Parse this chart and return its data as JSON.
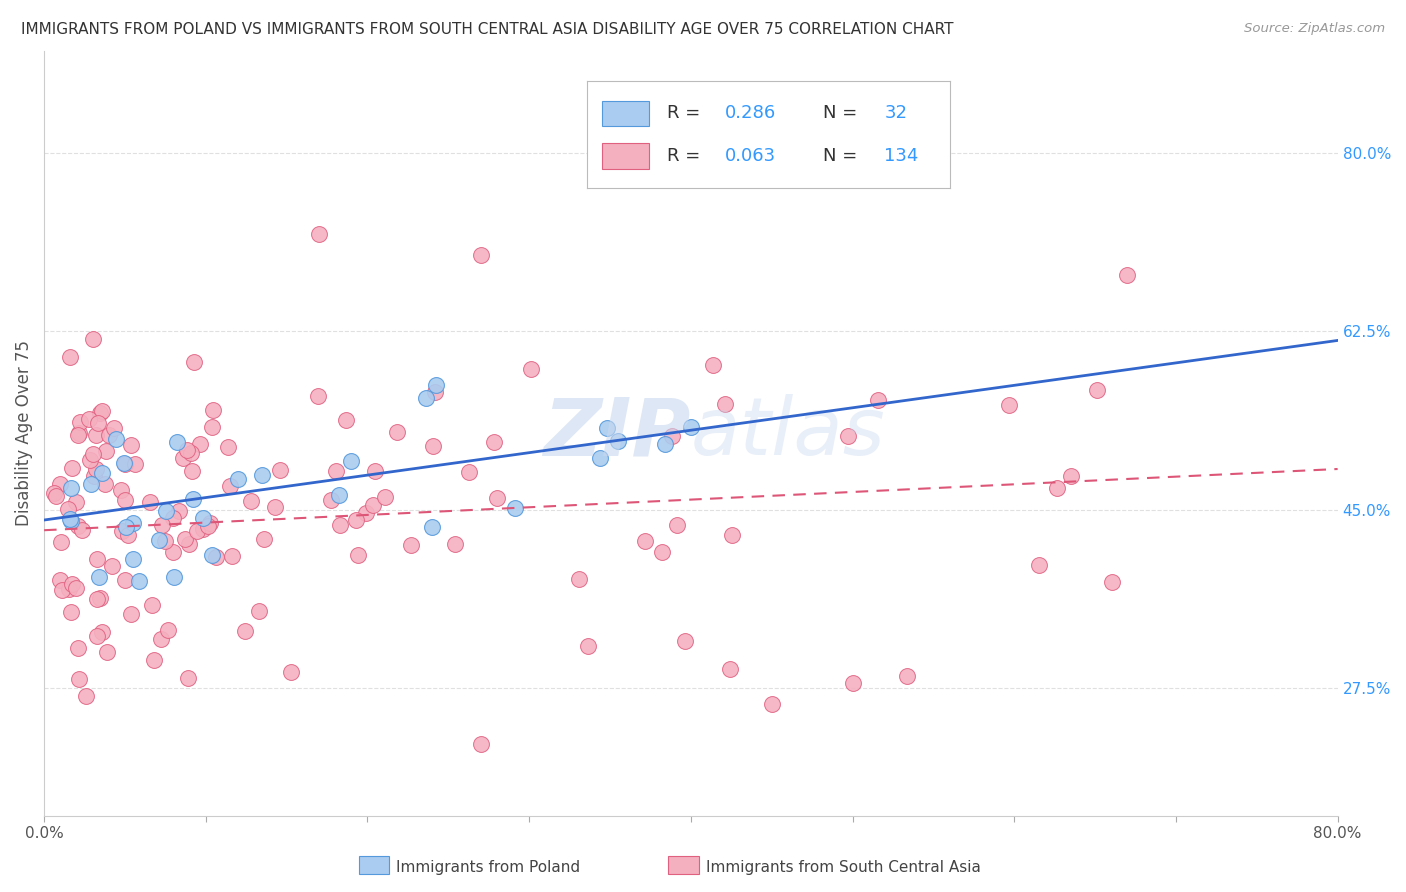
{
  "title": "IMMIGRANTS FROM POLAND VS IMMIGRANTS FROM SOUTH CENTRAL ASIA DISABILITY AGE OVER 75 CORRELATION CHART",
  "source": "Source: ZipAtlas.com",
  "ylabel": "Disability Age Over 75",
  "xlim": [
    0.0,
    0.8
  ],
  "ylim": [
    0.15,
    0.9
  ],
  "ytick_labels_right": [
    "80.0%",
    "62.5%",
    "45.0%",
    "27.5%"
  ],
  "ytick_vals_right": [
    0.8,
    0.625,
    0.45,
    0.275
  ],
  "series1_label": "Immigrants from Poland",
  "series2_label": "Immigrants from South Central Asia",
  "series1_color": "#aaccf0",
  "series2_color": "#f5b0c0",
  "series1_edge_color": "#5599dd",
  "series2_edge_color": "#e06080",
  "series1_line_color": "#3366cc",
  "series2_line_color": "#dd5577",
  "background_color": "#ffffff",
  "grid_color": "#e0e0e0",
  "watermark_color": "#c8d8ef",
  "title_fontsize": 11,
  "tick_fontsize": 11,
  "legend_r1": "0.286",
  "legend_n1": "32",
  "legend_r2": "0.063",
  "legend_n2": "134",
  "blue_text_color": "#3399ff",
  "dark_text_color": "#333333"
}
